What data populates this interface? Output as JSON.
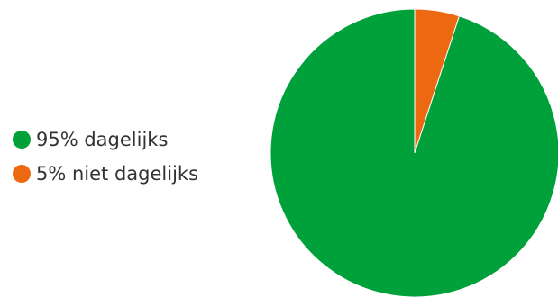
{
  "chart_data": {
    "type": "pie",
    "title": "",
    "slices": [
      {
        "label": "95% dagelijks",
        "value": 95,
        "color": "#00a13a"
      },
      {
        "label": "5% niet dagelijks",
        "value": 5,
        "color": "#ec6811"
      }
    ],
    "legend_position": "left"
  },
  "legend": {
    "items": [
      {
        "label": "95% dagelijks"
      },
      {
        "label": "5% niet dagelijks"
      }
    ]
  }
}
